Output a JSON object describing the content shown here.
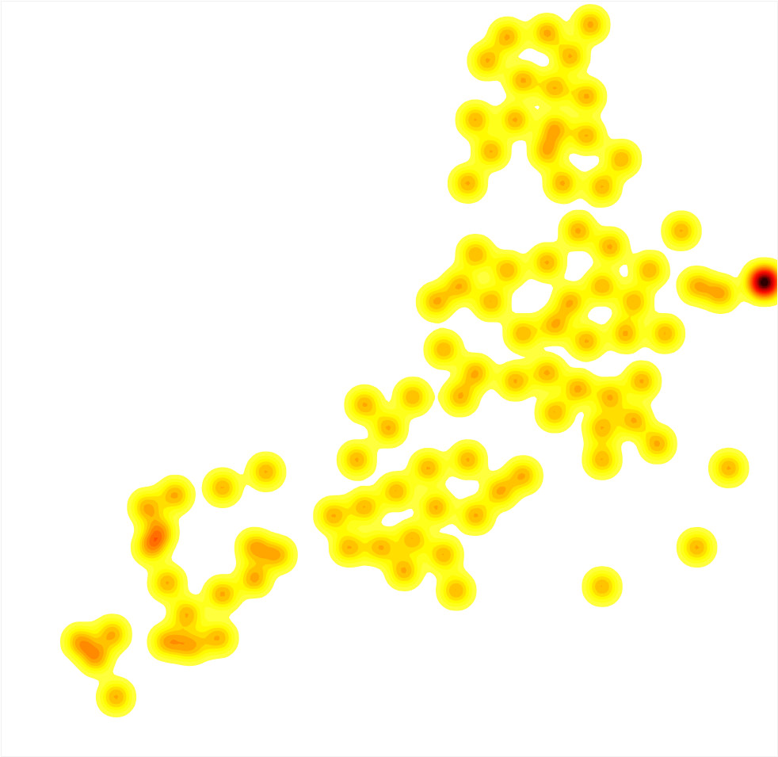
{
  "chart_data": {
    "type": "density",
    "tick_labels": false,
    "grid": false,
    "xlim": [
      0,
      100
    ],
    "ylim": [
      0,
      100
    ],
    "x": [
      65.2,
      70.3,
      75.9,
      73.3,
      62.6,
      67.2,
      71.3,
      75.4,
      66.2,
      71.3,
      75.4,
      70.3,
      72.3,
      77.4,
      79.9,
      61.1,
      63.1,
      60.1,
      61.1,
      65.2,
      59.1,
      63.1,
      70.3,
      74.3,
      78.4,
      77.4,
      73.3,
      81.5,
      83.5,
      67.2,
      71.3,
      75.4,
      80.4,
      85.5,
      66.2,
      70.3,
      74.3,
      78.4,
      82.5,
      77.4,
      81.5,
      77.4,
      84.5,
      71.3,
      56.0,
      89.6,
      92.7,
      98.3,
      98.3,
      98.3,
      87.6,
      93.7,
      57.0,
      61.1,
      53.0,
      59.1,
      46.8,
      49.9,
      60.1,
      55.0,
      64.2,
      67.2,
      50.9,
      46.8,
      42.8,
      56.0,
      61.1,
      53.0,
      48.9,
      44.8,
      57.0,
      51.9,
      58.6,
      45.8,
      89.6,
      77.4,
      34.1,
      28.5,
      22.4,
      18.8,
      20.4,
      32.6,
      35.6,
      32.6,
      21.4,
      23.9,
      28.5,
      10.2,
      14.3,
      21.4,
      24.4,
      28.0,
      12.2,
      14.8,
      19.3
    ],
    "y": [
      95.3,
      95.8,
      96.9,
      92.7,
      92.1,
      89.5,
      88.5,
      87.4,
      84.3,
      83.2,
      82.2,
      80.1,
      75.9,
      75.4,
      79.1,
      84.3,
      80.1,
      75.9,
      66.5,
      64.4,
      62.3,
      60.2,
      65.4,
      69.6,
      67.5,
      62.3,
      60.2,
      60.2,
      64.4,
      56.0,
      57.1,
      55.0,
      56.0,
      56.0,
      49.7,
      50.8,
      48.7,
      47.6,
      49.7,
      43.5,
      44.5,
      39.3,
      41.4,
      45.5,
      60.2,
      62.3,
      61.3,
      62.8,
      62.8,
      62.8,
      69.6,
      38.2,
      53.9,
      50.8,
      47.6,
      47.6,
      46.6,
      43.5,
      39.3,
      38.2,
      35.1,
      37.2,
      35.1,
      33.0,
      31.9,
      33.0,
      31.9,
      28.8,
      27.7,
      27.7,
      26.7,
      24.6,
      22.0,
      39.3,
      27.7,
      22.5,
      37.7,
      35.6,
      34.6,
      33.0,
      29.8,
      27.7,
      26.7,
      23.6,
      23.0,
      18.8,
      21.5,
      15.2,
      16.2,
      15.2,
      14.7,
      15.7,
      13.1,
      7.9,
      27.7
    ]
  }
}
